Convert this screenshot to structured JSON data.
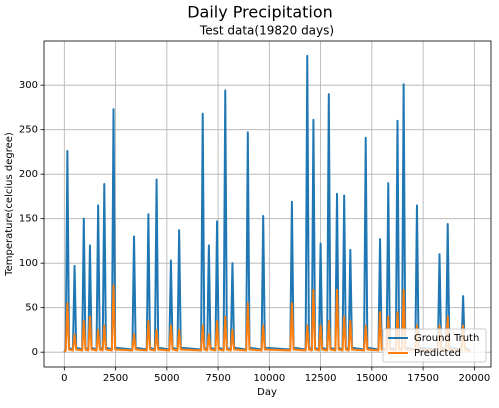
{
  "chart_data": {
    "type": "line",
    "title": "Daily Precipitation",
    "subtitle": "Test data(19820 days)",
    "x_label": "Day",
    "y_label": "Temperature(celcius degree)",
    "x": [
      0,
      70,
      150,
      230,
      420,
      500,
      580,
      870,
      950,
      1030,
      1170,
      1250,
      1330,
      1570,
      1650,
      1730,
      1870,
      1950,
      2030,
      2320,
      2400,
      2480,
      3320,
      3400,
      3480,
      4020,
      4100,
      4180,
      4420,
      4500,
      4580,
      5120,
      5200,
      5280,
      5520,
      5600,
      5680,
      6670,
      6750,
      6830,
      6970,
      7050,
      7130,
      7370,
      7450,
      7530,
      7770,
      7850,
      7930,
      8120,
      8200,
      8280,
      8870,
      8950,
      9030,
      9620,
      9700,
      9780,
      11020,
      11100,
      11180,
      11770,
      11850,
      11930,
      12070,
      12150,
      12230,
      12420,
      12500,
      12580,
      12820,
      12900,
      12980,
      13220,
      13300,
      13380,
      13570,
      13650,
      13730,
      13870,
      13950,
      14030,
      14620,
      14700,
      14780,
      15320,
      15400,
      15480,
      15720,
      15800,
      15880,
      16170,
      16250,
      16330,
      16470,
      16550,
      16630,
      17120,
      17200,
      17280,
      18220,
      18300,
      18380,
      18620,
      18700,
      18780,
      19370,
      19450,
      19530,
      19820
    ],
    "series": [
      {
        "name": "Ground Truth",
        "color": "#1f77b4",
        "values": [
          0,
          3,
          226,
          5,
          3,
          97,
          5,
          3,
          150,
          5,
          3,
          120,
          5,
          3,
          165,
          5,
          3,
          189,
          5,
          3,
          273,
          5,
          3,
          130,
          5,
          3,
          155,
          5,
          3,
          194,
          5,
          3,
          103,
          5,
          3,
          137,
          5,
          3,
          268,
          5,
          3,
          120,
          5,
          3,
          147,
          5,
          3,
          294,
          5,
          3,
          100,
          5,
          3,
          247,
          5,
          3,
          153,
          5,
          3,
          169,
          5,
          3,
          333,
          5,
          3,
          261,
          5,
          3,
          122,
          5,
          3,
          290,
          5,
          3,
          178,
          5,
          3,
          176,
          5,
          3,
          115,
          5,
          3,
          241,
          5,
          3,
          127,
          5,
          3,
          190,
          5,
          3,
          260,
          5,
          3,
          301,
          5,
          3,
          165,
          5,
          3,
          110,
          5,
          3,
          144,
          5,
          3,
          63,
          5,
          2
        ]
      },
      {
        "name": "Predicted",
        "color": "#ff7f0e",
        "values": [
          0,
          2,
          55,
          3,
          2,
          20,
          3,
          2,
          35,
          3,
          2,
          40,
          3,
          2,
          25,
          3,
          2,
          30,
          3,
          2,
          75,
          3,
          2,
          20,
          3,
          2,
          35,
          3,
          2,
          25,
          3,
          2,
          30,
          3,
          2,
          25,
          3,
          2,
          30,
          3,
          2,
          20,
          3,
          2,
          35,
          3,
          2,
          40,
          3,
          2,
          25,
          3,
          2,
          55,
          3,
          2,
          30,
          3,
          2,
          55,
          3,
          2,
          30,
          3,
          2,
          70,
          3,
          2,
          30,
          3,
          2,
          35,
          3,
          2,
          70,
          3,
          2,
          40,
          3,
          2,
          35,
          3,
          2,
          30,
          3,
          2,
          45,
          3,
          2,
          40,
          3,
          2,
          45,
          3,
          2,
          70,
          3,
          2,
          30,
          3,
          2,
          30,
          3,
          2,
          40,
          3,
          2,
          30,
          3,
          1
        ]
      }
    ],
    "xlim": [
      -991,
      20811
    ],
    "ylim": [
      -16.65,
      349.65
    ],
    "xticks": [
      0,
      2500,
      5000,
      7500,
      10000,
      12500,
      15000,
      17500,
      20000
    ],
    "yticks": [
      0,
      50,
      100,
      150,
      200,
      250,
      300
    ],
    "grid": true,
    "legend": "lower right"
  }
}
